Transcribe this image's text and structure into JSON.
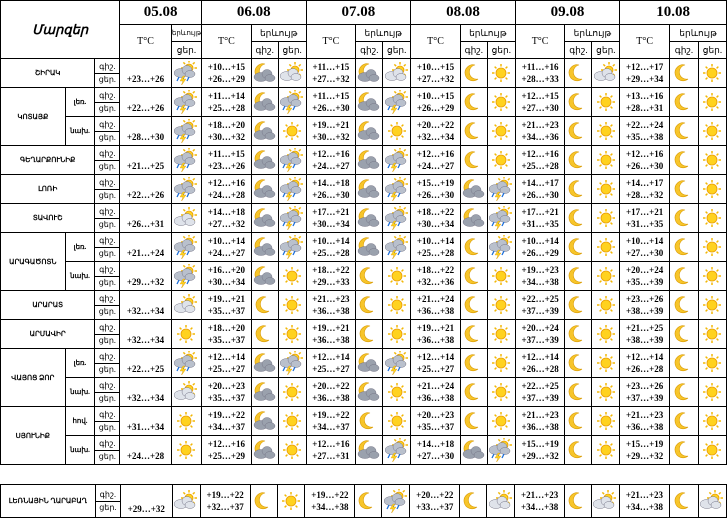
{
  "header": {
    "region": "Մարզեր",
    "temp": "T°C",
    "phenomenon": "երևույթ",
    "night": "գիշ.",
    "day": "ցեր.",
    "dates": [
      "05.08",
      "06.08",
      "07.08",
      "08.08",
      "09.08",
      "10.08"
    ]
  },
  "regions": [
    {
      "name": "ՇԻՐԱԿ",
      "zones": [
        {
          "first": "+23…+26",
          "temps": [
            [
              "+10…+15",
              "+26…+29"
            ],
            [
              "+11…+15",
              "+27…+32"
            ],
            [
              "+10…+15",
              "+27…+32"
            ],
            [
              "+11…+16",
              "+28…+33"
            ],
            [
              "+12…+17",
              "+29…+34"
            ]
          ]
        }
      ]
    },
    {
      "name": "ԿՈՏԱՅՔ",
      "zones": [
        {
          "zone": "լեռ.",
          "first": "+22…+26",
          "temps": [
            [
              "+11…+14",
              "+25…+28"
            ],
            [
              "+11…+15",
              "+26…+30"
            ],
            [
              "+10…+15",
              "+26…+29"
            ],
            [
              "+12…+15",
              "+27…+30"
            ],
            [
              "+13…+16",
              "+28…+31"
            ]
          ]
        },
        {
          "zone": "նախ.",
          "first": "+28…+30",
          "temps": [
            [
              "+18…+20",
              "+30…+32"
            ],
            [
              "+19…+21",
              "+30…+32"
            ],
            [
              "+20…+22",
              "+32…+34"
            ],
            [
              "+21…+23",
              "+34…+36"
            ],
            [
              "+22…+24",
              "+35…+38"
            ]
          ]
        }
      ]
    },
    {
      "name": "ԳԵՂԱՐՔՈՒՆԻՔ",
      "zones": [
        {
          "first": "+21…+25",
          "temps": [
            [
              "+11…+15",
              "+23…+26"
            ],
            [
              "+12…+16",
              "+24…+27"
            ],
            [
              "+12…+16",
              "+24…+27"
            ],
            [
              "+12…+16",
              "+25…+28"
            ],
            [
              "+12…+16",
              "+26…+30"
            ]
          ]
        }
      ]
    },
    {
      "name": "ԼՈՌԻ",
      "zones": [
        {
          "first": "+22…+26",
          "temps": [
            [
              "+12…+16",
              "+24…+28"
            ],
            [
              "+14…+18",
              "+26…+30"
            ],
            [
              "+15…+19",
              "+26…+30"
            ],
            [
              "+14…+17",
              "+26…+30"
            ],
            [
              "+14…+17",
              "+28…+32"
            ]
          ]
        }
      ]
    },
    {
      "name": "ՏԱՎՈՒՇ",
      "zones": [
        {
          "first": "+26…+31",
          "temps": [
            [
              "+14…+18",
              "+27…+32"
            ],
            [
              "+17…+21",
              "+30…+34"
            ],
            [
              "+18…+22",
              "+30…+34"
            ],
            [
              "+17…+21",
              "+31…+35"
            ],
            [
              "+17…+21",
              "+31…+35"
            ]
          ]
        }
      ]
    },
    {
      "name": "ԱՐԱԳԱԾՈՏՆ",
      "zones": [
        {
          "zone": "լեռ.",
          "first": "+21…+24",
          "temps": [
            [
              "+10…+14",
              "+24…+27"
            ],
            [
              "+10…+14",
              "+25…+28"
            ],
            [
              "+10…+14",
              "+25…+28"
            ],
            [
              "+10…+14",
              "+26…+29"
            ],
            [
              "+10…+14",
              "+27…+30"
            ]
          ]
        },
        {
          "zone": "նախ.",
          "first": "+29…+32",
          "temps": [
            [
              "+16…+20",
              "+30…+34"
            ],
            [
              "+18…+22",
              "+29…+33"
            ],
            [
              "+18…+22",
              "+32…+36"
            ],
            [
              "+19…+23",
              "+34…+38"
            ],
            [
              "+20…+24",
              "+35…+39"
            ]
          ]
        }
      ]
    },
    {
      "name": "ԱՐԱՐԱՏ",
      "zones": [
        {
          "first": "+32…+34",
          "temps": [
            [
              "+19…+21",
              "+35…+37"
            ],
            [
              "+21…+23",
              "+36…+38"
            ],
            [
              "+21…+24",
              "+36…+38"
            ],
            [
              "+22…+25",
              "+37…+39"
            ],
            [
              "+23…+26",
              "+38…+39"
            ]
          ]
        }
      ]
    },
    {
      "name": "ԱՐՄԱՎԻՐ",
      "zones": [
        {
          "first": "+32…+34",
          "temps": [
            [
              "+18…+20",
              "+35…+37"
            ],
            [
              "+19…+21",
              "+36…+38"
            ],
            [
              "+19…+21",
              "+36…+38"
            ],
            [
              "+20…+24",
              "+37…+39"
            ],
            [
              "+21…+25",
              "+38…+39"
            ]
          ]
        }
      ]
    },
    {
      "name": "ՎԱՅՈՑ ՁՈՐ",
      "zones": [
        {
          "zone": "լեռ.",
          "first": "+22…+25",
          "temps": [
            [
              "+12…+14",
              "+25…+27"
            ],
            [
              "+12…+14",
              "+25…+27"
            ],
            [
              "+12…+14",
              "+25…+27"
            ],
            [
              "+12…+14",
              "+26…+28"
            ],
            [
              "+12…+14",
              "+26…+28"
            ]
          ]
        },
        {
          "zone": "նախ.",
          "first": "+32…+34",
          "temps": [
            [
              "+20…+23",
              "+35…+37"
            ],
            [
              "+20…+22",
              "+36…+38"
            ],
            [
              "+21…+24",
              "+36…+38"
            ],
            [
              "+22…+25",
              "+37…+39"
            ],
            [
              "+23…+26",
              "+37…+39"
            ]
          ]
        }
      ]
    },
    {
      "name": "ՍՅՈՒՆԻՔ",
      "zones": [
        {
          "zone": "հով.",
          "first": "+31…+34",
          "temps": [
            [
              "+19…+22",
              "+34…+37"
            ],
            [
              "+19…+22",
              "+34…+37"
            ],
            [
              "+20…+23",
              "+35…+37"
            ],
            [
              "+21…+23",
              "+36…+38"
            ],
            [
              "+21…+23",
              "+36…+38"
            ]
          ]
        },
        {
          "zone": "նախ.",
          "first": "+24…+28",
          "temps": [
            [
              "+12…+16",
              "+25…+29"
            ],
            [
              "+12…+16",
              "+27…+31"
            ],
            [
              "+14…+18",
              "+27…+30"
            ],
            [
              "+15…+19",
              "+29…+32"
            ],
            [
              "+15…+19",
              "+29…+32"
            ]
          ]
        }
      ]
    }
  ],
  "extra": {
    "name": "ԼԵՌՆԱՅԻՆ ՂԱՐԱԲԱՂ",
    "first": "+29…+32",
    "temps": [
      [
        "+19…+22",
        "+32…+37"
      ],
      [
        "+19…+22",
        "+34…+38"
      ],
      [
        "+20…+22",
        "+33…+37"
      ],
      [
        "+21…+23",
        "+34…+38"
      ],
      [
        "+21…+23",
        "+34…+38"
      ]
    ]
  }
}
